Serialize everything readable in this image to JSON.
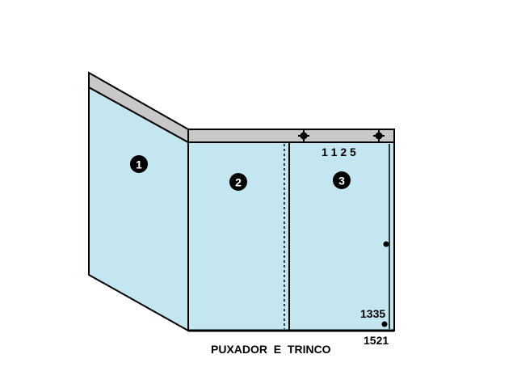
{
  "colors": {
    "glass": "#c4e6f0",
    "frame": "#c8c8c8",
    "outline": "#000000",
    "background": "#ffffff"
  },
  "panels": [
    {
      "id": "1",
      "label": "1"
    },
    {
      "id": "2",
      "label": "2"
    },
    {
      "id": "3",
      "label": "3"
    }
  ],
  "labels": {
    "code_top": "1 1 2 5",
    "code_1335": "1335",
    "code_1521": "1521",
    "caption": "PUXADOR  E  TRINCO"
  },
  "icons": {
    "roller_left": "roller-cross-icon",
    "roller_right": "roller-cross-icon",
    "handle_dot": "handle-dot-icon",
    "lock_dot": "lock-dot-icon"
  }
}
